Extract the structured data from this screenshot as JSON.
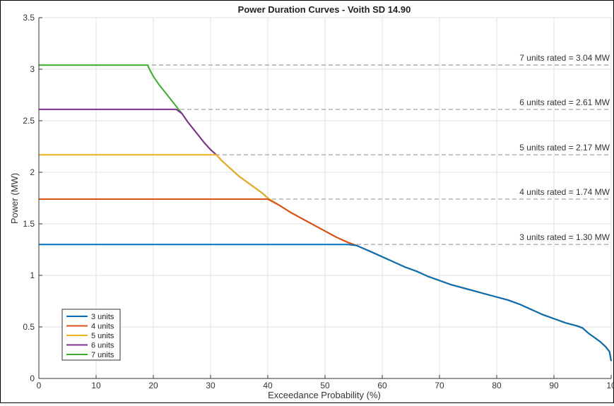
{
  "chart_data": {
    "type": "line",
    "title": "Power Duration Curves - Voith SD 14.90",
    "xlabel": "Exceedance Probability (%)",
    "ylabel": "Power (MW)",
    "xlim": [
      0,
      100
    ],
    "ylim": [
      0,
      3.5
    ],
    "x_ticks": [
      "0",
      "10",
      "20",
      "30",
      "40",
      "50",
      "60",
      "70",
      "80",
      "90",
      "10"
    ],
    "y_ticks": [
      "0",
      "0.5",
      "1",
      "1.5",
      "2",
      "2.5",
      "3",
      "3.5"
    ],
    "grid": true,
    "legend_position": "bottom-left",
    "series": [
      {
        "name": "3 units",
        "color": "#0072BD",
        "cap": 1.3
      },
      {
        "name": "4 units",
        "color": "#D95319",
        "cap": 1.74
      },
      {
        "name": "5 units",
        "color": "#EDB120",
        "cap": 2.17
      },
      {
        "name": "6 units",
        "color": "#7E2F8E",
        "cap": 2.61
      },
      {
        "name": "7 units",
        "color": "#3CAA2C",
        "cap": 3.04
      }
    ],
    "flow_curve": {
      "x": [
        0,
        19,
        19.5,
        20,
        21,
        22,
        23,
        24,
        25,
        26,
        27,
        28,
        29,
        30,
        31,
        32,
        33,
        34,
        35,
        36,
        37,
        38,
        39,
        40,
        42,
        44,
        46,
        48,
        50,
        52,
        54,
        55.5,
        58,
        60,
        62,
        64,
        66,
        68,
        70,
        72,
        74,
        76,
        78,
        80,
        82,
        84,
        86,
        88,
        90,
        92,
        94,
        95,
        96,
        97,
        98,
        99,
        99.7,
        100
      ],
      "y": [
        3.04,
        3.04,
        2.98,
        2.93,
        2.85,
        2.78,
        2.71,
        2.64,
        2.57,
        2.49,
        2.42,
        2.35,
        2.28,
        2.22,
        2.17,
        2.11,
        2.06,
        2.01,
        1.96,
        1.92,
        1.88,
        1.84,
        1.8,
        1.75,
        1.68,
        1.61,
        1.55,
        1.49,
        1.43,
        1.37,
        1.32,
        1.29,
        1.23,
        1.18,
        1.13,
        1.08,
        1.04,
        0.99,
        0.95,
        0.91,
        0.88,
        0.85,
        0.82,
        0.79,
        0.76,
        0.72,
        0.67,
        0.62,
        0.58,
        0.54,
        0.51,
        0.49,
        0.44,
        0.4,
        0.36,
        0.31,
        0.26,
        0.17
      ]
    },
    "rated_lines": [
      {
        "label": "7 units rated = 3.04 MW",
        "value": 3.04
      },
      {
        "label": "6 units rated = 2.61 MW",
        "value": 2.61
      },
      {
        "label": "5 units rated = 2.17 MW",
        "value": 2.17
      },
      {
        "label": "4 units rated = 1.74 MW",
        "value": 1.74
      },
      {
        "label": "3 units rated = 1.30 MW",
        "value": 1.3
      }
    ]
  }
}
